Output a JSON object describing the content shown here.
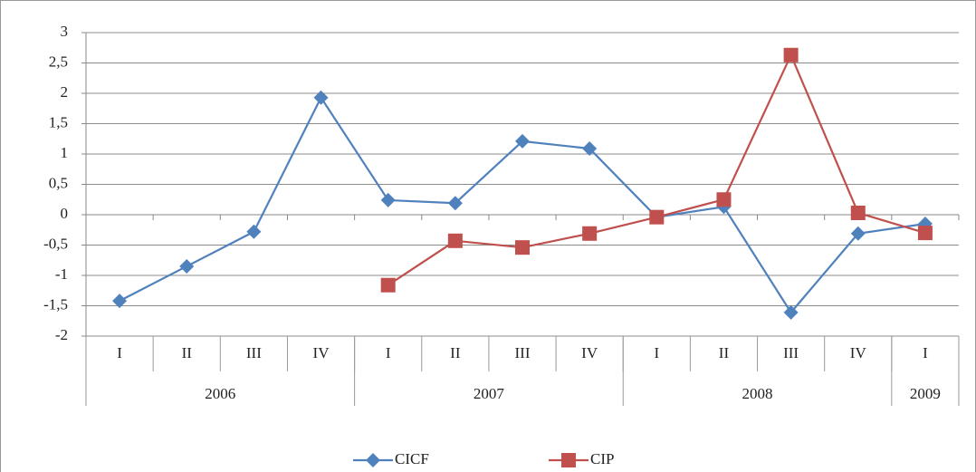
{
  "chart_data": {
    "type": "line",
    "categories": [
      "I",
      "II",
      "III",
      "IV",
      "I",
      "II",
      "III",
      "IV",
      "I",
      "II",
      "III",
      "IV",
      "I"
    ],
    "category_groups": [
      {
        "label": "2006",
        "count": 4
      },
      {
        "label": "2007",
        "count": 4
      },
      {
        "label": "2008",
        "count": 4
      },
      {
        "label": "2009",
        "count": 1
      }
    ],
    "series": [
      {
        "name": "CICF",
        "color": "#4f81bd",
        "marker": "diamond",
        "values": [
          -1.42,
          -0.85,
          -0.28,
          1.93,
          0.24,
          0.19,
          1.21,
          1.09,
          -0.04,
          0.13,
          -1.61,
          -0.31,
          -0.15
        ]
      },
      {
        "name": "CIP",
        "color": "#c0504d",
        "marker": "square",
        "values": [
          null,
          null,
          null,
          null,
          -1.16,
          -0.43,
          -0.54,
          -0.31,
          -0.04,
          0.25,
          2.63,
          0.03,
          -0.3
        ]
      }
    ],
    "ylim": [
      -2,
      3
    ],
    "yticks": [
      -2,
      {
        "value": -1.5,
        "label": "-1,5"
      },
      -1,
      {
        "value": -0.5,
        "label": "-0,5"
      },
      0,
      {
        "value": 0.5,
        "label": "0,5"
      },
      1,
      {
        "value": 1.5,
        "label": "1,5"
      },
      2,
      {
        "value": 2.5,
        "label": "2,5"
      },
      3
    ],
    "grid": true,
    "legend": "bottom"
  }
}
